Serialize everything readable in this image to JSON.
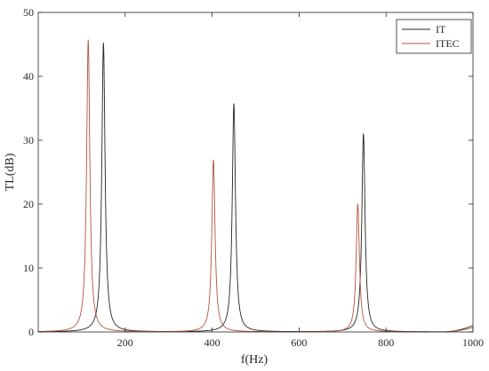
{
  "chart_data": {
    "type": "line",
    "xlabel": "f(Hz)",
    "ylabel": "TL(dB)",
    "xlim": [
      0,
      1000
    ],
    "ylim": [
      0,
      50
    ],
    "xticks": [
      200,
      400,
      600,
      800,
      1000
    ],
    "yticks": [
      0,
      10,
      20,
      30,
      40,
      50
    ],
    "grid": false,
    "legend_position": "top-right",
    "series": [
      {
        "name": "IT",
        "color": "#262626",
        "peaks": [
          {
            "f": 150,
            "tl": 45.2
          },
          {
            "f": 450,
            "tl": 35.7
          },
          {
            "f": 748,
            "tl": 31.0
          }
        ],
        "end_tl": 1.0
      },
      {
        "name": "ITEC",
        "color": "#b5533f",
        "peaks": [
          {
            "f": 115,
            "tl": 45.7
          },
          {
            "f": 403,
            "tl": 26.9
          },
          {
            "f": 735,
            "tl": 20.0
          }
        ],
        "end_tl": 0.7
      }
    ]
  }
}
